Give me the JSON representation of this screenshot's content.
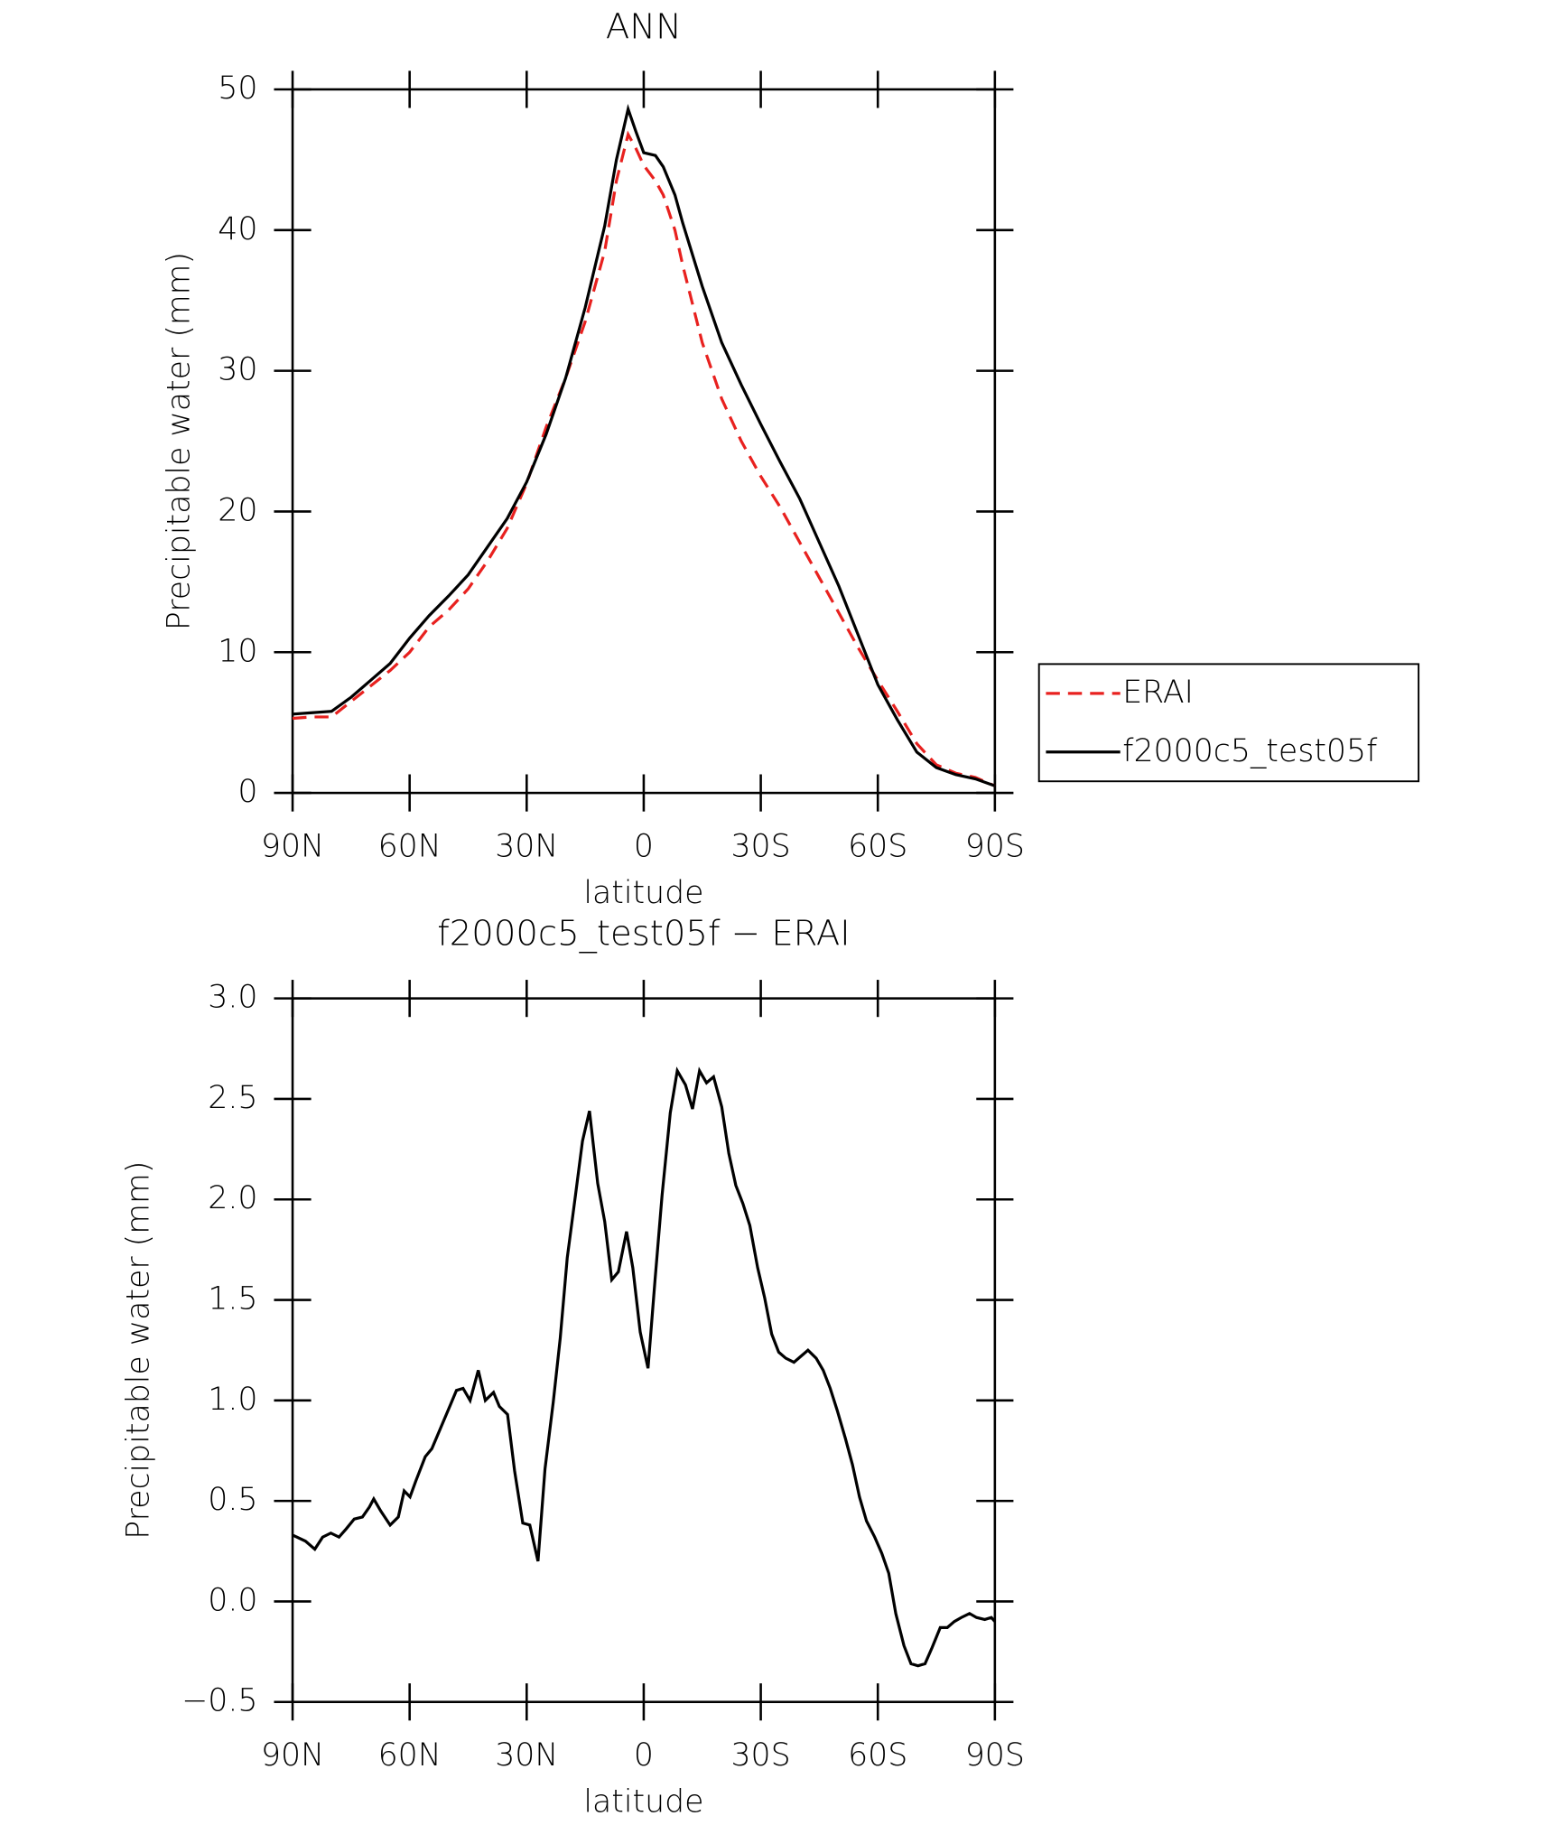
{
  "chart_data": [
    {
      "type": "line",
      "title": "ANN",
      "xlabel": "latitude",
      "ylabel": "Precipitable water (mm)",
      "x": [
        90,
        85,
        80,
        75,
        70,
        65,
        60,
        55,
        50,
        45,
        40,
        35,
        30,
        25,
        20,
        15,
        10,
        7,
        4,
        2,
        0,
        -3,
        -5,
        -8,
        -10,
        -15,
        -20,
        -25,
        -30,
        -35,
        -40,
        -45,
        -50,
        -55,
        -60,
        -65,
        -70,
        -75,
        -80,
        -85,
        -90
      ],
      "series": [
        {
          "name": "ERAI",
          "color": "#e8211f",
          "linestyle": "dashed",
          "values": [
            5.3,
            5.4,
            5.4,
            6.5,
            7.6,
            8.7,
            10.0,
            11.8,
            13.0,
            14.5,
            16.5,
            18.8,
            22.0,
            26.0,
            29.5,
            33.5,
            38.5,
            43.5,
            46.8,
            45.8,
            44.6,
            43.5,
            42.5,
            40.0,
            37.5,
            32.0,
            28.0,
            25.0,
            22.5,
            20.3,
            17.8,
            15.3,
            12.8,
            10.3,
            8.0,
            5.8,
            3.5,
            2.0,
            1.4,
            1.1,
            0.5
          ]
        },
        {
          "name": "f2000c5_test05f",
          "color": "#000000",
          "linestyle": "solid",
          "values": [
            5.6,
            5.7,
            5.8,
            6.8,
            8.0,
            9.2,
            11.0,
            12.6,
            14.0,
            15.5,
            17.5,
            19.5,
            22.1,
            25.5,
            29.5,
            34.5,
            40.3,
            45.0,
            48.6,
            47.0,
            45.5,
            45.3,
            44.5,
            42.5,
            40.5,
            36.0,
            32.0,
            29.0,
            26.2,
            23.5,
            20.9,
            17.8,
            14.7,
            11.2,
            7.7,
            5.2,
            2.9,
            1.8,
            1.3,
            1.0,
            0.5
          ]
        }
      ],
      "xlim": [
        90,
        -90
      ],
      "xticks": [
        {
          "value": 90,
          "label": "90N"
        },
        {
          "value": 60,
          "label": "60N"
        },
        {
          "value": 30,
          "label": "30N"
        },
        0,
        {
          "value": -30,
          "label": "30S"
        },
        {
          "value": -60,
          "label": "60S"
        },
        {
          "value": -90,
          "label": "90S"
        }
      ],
      "ylim": [
        0,
        50
      ],
      "yticks": [
        0,
        10,
        20,
        30,
        40,
        50
      ],
      "legend": "right"
    },
    {
      "type": "line",
      "title": "f2000c5_test05f − ERAI",
      "xlabel": "latitude",
      "ylabel": "Precipitable water (mm)",
      "x": [
        90,
        86.7,
        84.3,
        82.3,
        80.2,
        78.1,
        76.3,
        74.2,
        72.1,
        70.3,
        69.2,
        67.4,
        65.0,
        62.9,
        61.4,
        59.9,
        58.4,
        56.0,
        54.3,
        51.9,
        49.5,
        48.0,
        46.3,
        44.5,
        42.4,
        40.6,
        38.5,
        37.0,
        34.9,
        33.1,
        31.0,
        29.2,
        27.1,
        25.3,
        23.2,
        21.4,
        19.6,
        17.5,
        15.7,
        13.9,
        11.8,
        10.0,
        8.2,
        6.5,
        4.4,
        2.8,
        0.9,
        -1.1,
        -2.9,
        -4.7,
        -6.8,
        -8.6,
        -10.7,
        -12.5,
        -14.3,
        -16.1,
        -17.9,
        -20.0,
        -21.8,
        -23.6,
        -25.4,
        -27.2,
        -29.2,
        -31.0,
        -32.8,
        -34.6,
        -36.4,
        -38.5,
        -40.3,
        -42.1,
        -44.2,
        -46.0,
        -47.8,
        -49.6,
        -51.7,
        -53.5,
        -55.3,
        -57.1,
        -59.2,
        -61.0,
        -62.8,
        -64.6,
        -66.7,
        -68.5,
        -70.3,
        -72.1,
        -73.9,
        -76.0,
        -77.8,
        -79.6,
        -81.4,
        -83.5,
        -85.3,
        -87.4,
        -89.1,
        -90
      ],
      "series": [
        {
          "color": "#000000",
          "linestyle": "solid",
          "values": [
            0.33,
            0.3,
            0.26,
            0.32,
            0.34,
            0.32,
            0.36,
            0.41,
            0.42,
            0.47,
            0.51,
            0.45,
            0.38,
            0.42,
            0.55,
            0.52,
            0.6,
            0.72,
            0.76,
            0.87,
            0.98,
            1.05,
            1.06,
            1.0,
            1.15,
            1.0,
            1.04,
            0.97,
            0.93,
            0.65,
            0.39,
            0.38,
            0.2,
            0.66,
            0.99,
            1.31,
            1.71,
            2.02,
            2.29,
            2.44,
            2.08,
            1.89,
            1.6,
            1.64,
            1.84,
            1.66,
            1.34,
            1.16,
            1.6,
            2.02,
            2.43,
            2.64,
            2.57,
            2.45,
            2.64,
            2.58,
            2.61,
            2.46,
            2.23,
            2.07,
            1.98,
            1.87,
            1.66,
            1.51,
            1.33,
            1.24,
            1.21,
            1.19,
            1.22,
            1.25,
            1.21,
            1.15,
            1.06,
            0.95,
            0.81,
            0.68,
            0.52,
            0.4,
            0.32,
            0.24,
            0.14,
            -0.06,
            -0.22,
            -0.31,
            -0.32,
            -0.31,
            -0.23,
            -0.13,
            -0.13,
            -0.1,
            -0.08,
            -0.06,
            -0.08,
            -0.09,
            -0.08,
            -0.1
          ]
        }
      ],
      "xlim": [
        90,
        -90
      ],
      "xticks": [
        {
          "value": 90,
          "label": "90N"
        },
        {
          "value": 60,
          "label": "60N"
        },
        {
          "value": 30,
          "label": "30N"
        },
        0,
        {
          "value": -30,
          "label": "30S"
        },
        {
          "value": -60,
          "label": "60S"
        },
        {
          "value": -90,
          "label": "90S"
        }
      ],
      "ylim": [
        -0.5,
        3.0
      ],
      "yticks": [
        {
          "value": -0.5,
          "label": "−0.5"
        },
        {
          "value": 0,
          "label": "0.0"
        },
        0.5,
        {
          "value": 1,
          "label": "1.0"
        },
        1.5,
        {
          "value": 2,
          "label": "2.0"
        },
        2.5,
        {
          "value": 3,
          "label": "3.0"
        }
      ]
    }
  ]
}
